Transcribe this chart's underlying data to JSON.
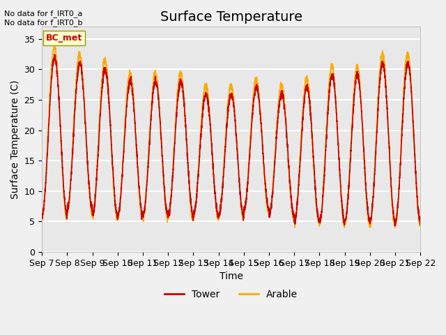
{
  "title": "Surface Temperature",
  "xlabel": "Time",
  "ylabel": "Surface Temperature (C)",
  "ylim": [
    0,
    37
  ],
  "yticks": [
    0,
    5,
    10,
    15,
    20,
    25,
    30,
    35
  ],
  "legend_labels": [
    "Tower",
    "Arable"
  ],
  "legend_colors": [
    "#cc0000",
    "#ffaa00"
  ],
  "annotation_text": "No data for f_IRT0_a\nNo data for f_IRT0_b",
  "bc_met_label": "BC_met",
  "bc_met_color": "#cc0000",
  "bc_met_bg": "#ffffcc",
  "background_color": "#e8e8e8",
  "grid_color": "#ffffff",
  "title_fontsize": 14,
  "label_fontsize": 10,
  "tick_fontsize": 9,
  "start_day": 7,
  "end_day": 22,
  "n_points": 3600
}
